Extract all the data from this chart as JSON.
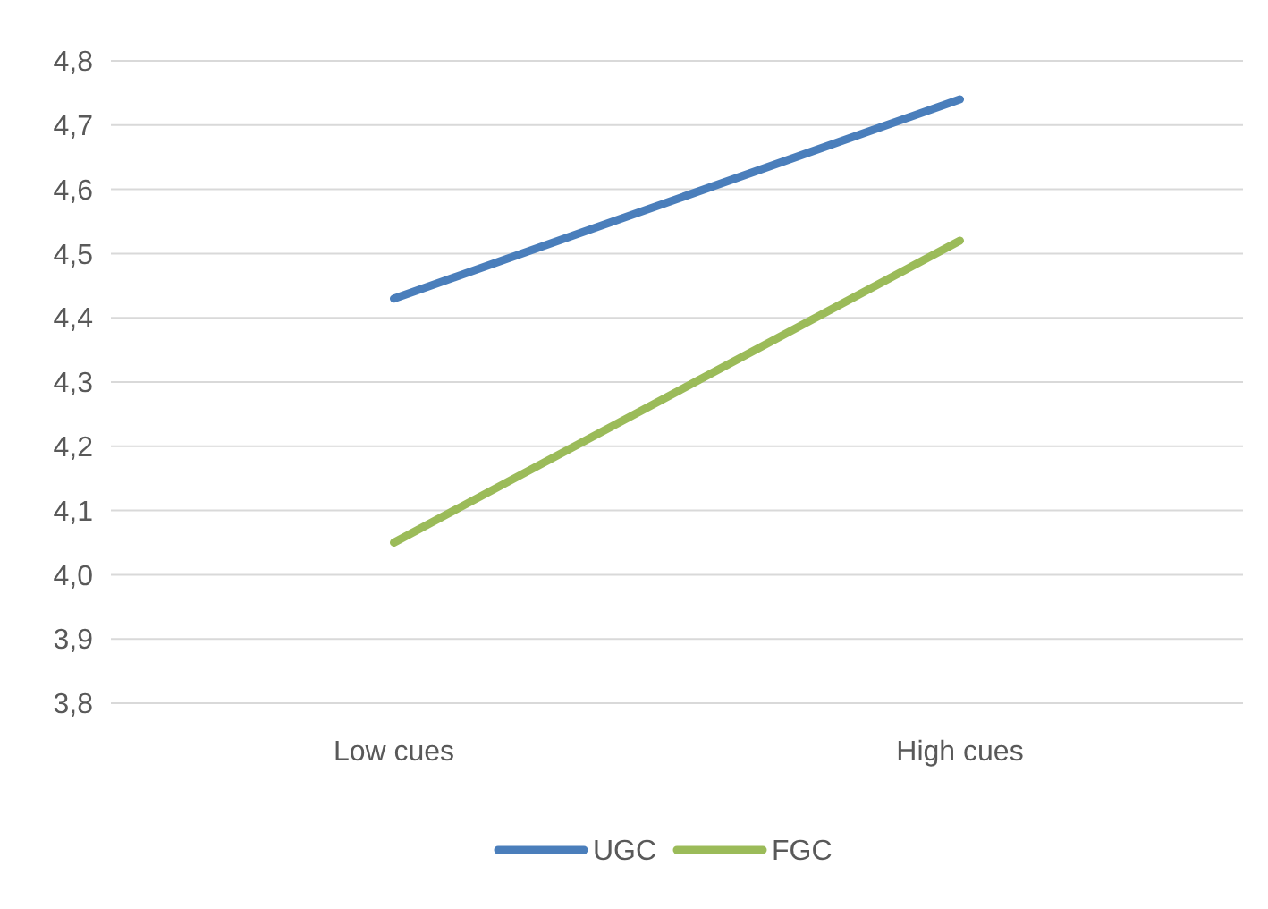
{
  "chart_data": {
    "type": "line",
    "categories": [
      "Low cues",
      "High cues"
    ],
    "series": [
      {
        "name": "UGC",
        "color": "#4a7ebb",
        "values": [
          4.43,
          4.74
        ]
      },
      {
        "name": "FGC",
        "color": "#9bbb59",
        "values": [
          4.05,
          4.52
        ]
      }
    ],
    "ylim": [
      3.8,
      4.8
    ],
    "yticks": [
      {
        "value": 3.8,
        "label": "3,8"
      },
      {
        "value": 3.9,
        "label": "3,9"
      },
      {
        "value": 4.0,
        "label": "4,0"
      },
      {
        "value": 4.1,
        "label": "4,1"
      },
      {
        "value": 4.2,
        "label": "4,2"
      },
      {
        "value": 4.3,
        "label": "4,3"
      },
      {
        "value": 4.4,
        "label": "4,4"
      },
      {
        "value": 4.5,
        "label": "4,5"
      },
      {
        "value": 4.6,
        "label": "4,6"
      },
      {
        "value": 4.7,
        "label": "4,7"
      },
      {
        "value": 4.8,
        "label": "4,8"
      }
    ],
    "grid": "y",
    "legend": "bottom",
    "marker": "none",
    "line_style": "solid"
  }
}
